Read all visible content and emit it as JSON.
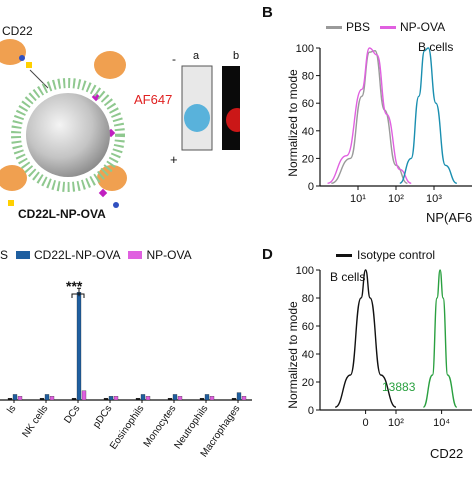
{
  "figure": {
    "panel_labels": {
      "b": "B",
      "d": "D"
    },
    "panel_a": {
      "cd22_label": "CD22",
      "af647_label": "AF647",
      "construct_label": "CD22L-NP-OVA",
      "gel_lane_a": "a",
      "gel_lane_b": "b",
      "gel_minus": "-",
      "gel_plus": "+",
      "colors": {
        "af647": "#e02020",
        "sphere": "#b8b8b8",
        "ovalbumin": "#f0a050"
      }
    },
    "panel_b": {
      "legend": [
        {
          "name": "PBS",
          "color": "#9a9a9a"
        },
        {
          "name": "NP-OVA",
          "color": "#e060e0"
        }
      ],
      "cells_label": "B cells",
      "ylabel": "Normalized to mode",
      "xlabel": "NP(AF6",
      "yticks": [
        "0",
        "20",
        "40",
        "60",
        "80",
        "100"
      ],
      "xticks": [
        "10¹",
        "10²",
        "10³"
      ],
      "teal_color": "#1a8fb0"
    },
    "panel_c": {
      "legend": [
        {
          "name": "S",
          "color": "#111111"
        },
        {
          "name": "CD22L-NP-OVA",
          "color": "#1f5fa0"
        },
        {
          "name": "NP-OVA",
          "color": "#e060e0"
        }
      ],
      "significance": "***",
      "categories": [
        "ls",
        "NK cells",
        "DCs",
        "pDCs",
        "Eosinophils",
        "Monocytes",
        "Neutrophils",
        "Macrophages"
      ]
    },
    "panel_d": {
      "legend": [
        {
          "name": "Isotype control",
          "color": "#111111"
        }
      ],
      "cells_label": "B cells",
      "ylabel": "Normalized to mode",
      "xlabel": "CD22",
      "mfi_value": "13883",
      "mfi_color": "#2aa040",
      "yticks": [
        "0",
        "20",
        "40",
        "60",
        "80",
        "100"
      ],
      "xticks": [
        "0",
        "10²",
        "10⁴"
      ]
    }
  },
  "chart_data": [
    {
      "type": "line",
      "panel": "B",
      "series": [
        {
          "name": "PBS",
          "x_log10": [
            0.3,
            0.8,
            1.1,
            1.3,
            1.45,
            1.7,
            2.0,
            2.3
          ],
          "y": [
            2,
            20,
            65,
            97,
            98,
            55,
            15,
            2
          ]
        },
        {
          "name": "NP-OVA",
          "x_log10": [
            0.2,
            0.7,
            1.1,
            1.3,
            1.5,
            1.75,
            2.1,
            2.4
          ],
          "y": [
            2,
            22,
            70,
            100,
            95,
            52,
            12,
            2
          ]
        },
        {
          "name": "",
          "x_log10": [
            2.1,
            2.4,
            2.6,
            2.75,
            2.85,
            3.05,
            3.3,
            3.6
          ],
          "y": [
            2,
            20,
            65,
            98,
            100,
            60,
            15,
            2
          ]
        }
      ],
      "ylim": [
        0,
        100
      ],
      "xlabel": "NP(AF6",
      "ylabel": "Normalized to mode"
    },
    {
      "type": "bar",
      "panel": "C",
      "categories": [
        "ls",
        "NK cells",
        "DCs",
        "pDCs",
        "Eosinophils",
        "Monocytes",
        "Neutrophils",
        "Macrophages"
      ],
      "series": [
        {
          "name": "S",
          "values": [
            1,
            1,
            1,
            1,
            1,
            1,
            1,
            1
          ]
        },
        {
          "name": "CD22L-NP-OVA",
          "values": [
            3,
            3,
            58,
            2,
            3,
            3,
            3,
            4
          ]
        },
        {
          "name": "NP-OVA",
          "values": [
            2,
            2,
            5,
            2,
            2,
            2,
            2,
            2
          ]
        }
      ]
    },
    {
      "type": "line",
      "panel": "D",
      "series": [
        {
          "name": "Isotype control",
          "x_pos": [
            0.1,
            0.2,
            0.27,
            0.3,
            0.33,
            0.4,
            0.5
          ],
          "y": [
            2,
            25,
            80,
            100,
            80,
            25,
            2
          ]
        },
        {
          "name": "13883",
          "x_pos": [
            0.68,
            0.74,
            0.77,
            0.79,
            0.81,
            0.84,
            0.9
          ],
          "y": [
            2,
            25,
            80,
            100,
            80,
            25,
            2
          ]
        }
      ],
      "ylim": [
        0,
        100
      ],
      "xlabel": "CD22",
      "ylabel": "Normalized to mode"
    }
  ]
}
